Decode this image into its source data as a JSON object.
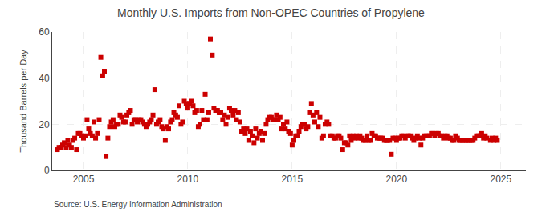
{
  "chart_data": {
    "type": "scatter",
    "title": "Monthly U.S. Imports from Non-OPEC Countries of Propylene",
    "ylabel": "Thousand Barrels per Day",
    "annotations": [
      "Source: U.S. Energy Information Administration"
    ],
    "color": "#cc0000",
    "marker": "square",
    "grid": true,
    "xlim": [
      2003.5,
      2026.2
    ],
    "xticks": [
      2005,
      2010,
      2015,
      2020,
      2025
    ],
    "ylim": [
      0,
      60
    ],
    "yticks": [
      0,
      20,
      40,
      60
    ],
    "x": [
      2003.75,
      2003.83,
      2003.92,
      2004.0,
      2004.08,
      2004.17,
      2004.25,
      2004.33,
      2004.42,
      2004.5,
      2004.58,
      2004.67,
      2004.75,
      2004.83,
      2004.92,
      2005.0,
      2005.08,
      2005.17,
      2005.25,
      2005.33,
      2005.42,
      2005.5,
      2005.58,
      2005.67,
      2005.75,
      2005.83,
      2005.92,
      2006.0,
      2006.08,
      2006.17,
      2006.25,
      2006.33,
      2006.42,
      2006.5,
      2006.58,
      2006.67,
      2006.75,
      2006.83,
      2006.92,
      2007.0,
      2007.08,
      2007.17,
      2007.25,
      2007.33,
      2007.42,
      2007.5,
      2007.58,
      2007.67,
      2007.75,
      2007.83,
      2007.92,
      2008.0,
      2008.08,
      2008.17,
      2008.25,
      2008.33,
      2008.42,
      2008.5,
      2008.58,
      2008.67,
      2008.75,
      2008.83,
      2008.92,
      2009.0,
      2009.08,
      2009.17,
      2009.25,
      2009.33,
      2009.42,
      2009.5,
      2009.58,
      2009.67,
      2009.75,
      2009.83,
      2009.92,
      2010.0,
      2010.08,
      2010.17,
      2010.25,
      2010.33,
      2010.42,
      2010.5,
      2010.58,
      2010.67,
      2010.75,
      2010.83,
      2010.92,
      2011.0,
      2011.08,
      2011.17,
      2011.25,
      2011.33,
      2011.42,
      2011.5,
      2011.58,
      2011.67,
      2011.75,
      2011.83,
      2011.92,
      2012.0,
      2012.08,
      2012.17,
      2012.25,
      2012.33,
      2012.42,
      2012.5,
      2012.58,
      2012.67,
      2012.75,
      2012.83,
      2012.92,
      2013.0,
      2013.08,
      2013.17,
      2013.25,
      2013.33,
      2013.42,
      2013.5,
      2013.58,
      2013.67,
      2013.75,
      2013.83,
      2013.92,
      2014.0,
      2014.08,
      2014.17,
      2014.25,
      2014.33,
      2014.42,
      2014.5,
      2014.58,
      2014.67,
      2014.75,
      2014.83,
      2014.92,
      2015.0,
      2015.08,
      2015.17,
      2015.25,
      2015.33,
      2015.42,
      2015.5,
      2015.58,
      2015.67,
      2015.75,
      2015.83,
      2015.92,
      2016.0,
      2016.08,
      2016.17,
      2016.25,
      2016.33,
      2016.42,
      2016.5,
      2016.58,
      2016.67,
      2016.75,
      2016.83,
      2016.92,
      2017.0,
      2017.08,
      2017.17,
      2017.25,
      2017.33,
      2017.42,
      2017.5,
      2017.58,
      2017.67,
      2017.75,
      2017.83,
      2017.92,
      2018.0,
      2018.08,
      2018.17,
      2018.25,
      2018.33,
      2018.42,
      2018.5,
      2018.58,
      2018.67,
      2018.75,
      2018.83,
      2018.92,
      2019.0,
      2019.08,
      2019.17,
      2019.25,
      2019.33,
      2019.42,
      2019.5,
      2019.58,
      2019.67,
      2019.75,
      2019.83,
      2019.92,
      2020.0,
      2020.08,
      2020.17,
      2020.25,
      2020.33,
      2020.42,
      2020.5,
      2020.58,
      2020.67,
      2020.75,
      2020.83,
      2020.92,
      2021.0,
      2021.08,
      2021.17,
      2021.25,
      2021.33,
      2021.42,
      2021.5,
      2021.58,
      2021.67,
      2021.75,
      2021.83,
      2021.92,
      2022.0,
      2022.08,
      2022.17,
      2022.25,
      2022.33,
      2022.42,
      2022.5,
      2022.58,
      2022.67,
      2022.75,
      2022.83,
      2022.92,
      2023.0,
      2023.08,
      2023.17,
      2023.25,
      2023.33,
      2023.42,
      2023.5,
      2023.58,
      2023.67,
      2023.75,
      2023.83,
      2023.92,
      2024.0,
      2024.08,
      2024.17,
      2024.25,
      2024.33,
      2024.5,
      2024.58,
      2024.67,
      2024.75,
      2024.83
    ],
    "values": [
      9,
      10,
      10,
      11,
      12,
      10,
      13,
      11,
      10,
      13,
      14,
      9,
      16,
      16,
      15,
      14,
      15,
      22,
      18,
      16,
      15,
      21,
      14,
      16,
      22,
      49,
      41,
      43,
      6,
      14,
      19,
      21,
      22,
      19,
      20,
      20,
      24,
      23,
      21,
      21,
      24,
      25,
      26,
      20,
      22,
      22,
      21,
      22,
      22,
      21,
      20,
      19,
      20,
      21,
      22,
      24,
      35,
      20,
      21,
      22,
      19,
      18,
      13,
      19,
      18,
      21,
      22,
      25,
      24,
      23,
      28,
      20,
      21,
      30,
      29,
      27,
      29,
      30,
      28,
      25,
      26,
      19,
      20,
      26,
      22,
      33,
      22,
      25,
      57,
      50,
      27,
      26,
      26,
      25,
      25,
      22,
      24,
      20,
      23,
      27,
      26,
      24,
      26,
      22,
      25,
      21,
      17,
      18,
      16,
      18,
      13,
      17,
      15,
      12,
      18,
      14,
      16,
      17,
      13,
      16,
      20,
      22,
      23,
      23,
      22,
      22,
      24,
      22,
      23,
      18,
      20,
      18,
      21,
      17,
      16,
      11,
      13,
      15,
      15,
      17,
      19,
      20,
      20,
      18,
      19,
      25,
      29,
      24,
      21,
      25,
      19,
      23,
      14,
      15,
      20,
      21,
      20,
      15,
      15,
      14,
      14,
      15,
      15,
      14,
      9,
      12,
      12,
      11,
      15,
      13,
      15,
      14,
      15,
      14,
      15,
      14,
      13,
      13,
      15,
      13,
      13,
      16,
      15,
      15,
      14,
      14,
      14,
      14,
      13,
      13,
      13,
      13,
      7,
      14,
      14,
      13,
      14,
      14,
      15,
      15,
      14,
      15,
      15,
      15,
      14,
      13,
      14,
      15,
      14,
      11,
      14,
      15,
      15,
      15,
      15,
      16,
      16,
      15,
      16,
      16,
      15,
      15,
      14,
      15,
      15,
      14,
      14,
      13,
      13,
      15,
      14,
      13,
      13,
      13,
      13,
      13,
      13,
      13,
      13,
      13,
      14,
      15,
      15,
      15,
      16,
      14,
      15,
      14,
      13,
      14,
      13,
      14,
      13
    ]
  }
}
